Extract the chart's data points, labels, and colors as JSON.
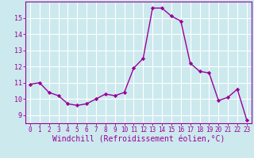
{
  "x": [
    0,
    1,
    2,
    3,
    4,
    5,
    6,
    7,
    8,
    9,
    10,
    11,
    12,
    13,
    14,
    15,
    16,
    17,
    18,
    19,
    20,
    21,
    22,
    23
  ],
  "y": [
    10.9,
    11.0,
    10.4,
    10.2,
    9.7,
    9.6,
    9.7,
    10.0,
    10.3,
    10.2,
    10.4,
    11.9,
    12.5,
    15.6,
    15.6,
    15.1,
    14.8,
    12.2,
    11.7,
    11.6,
    9.9,
    10.1,
    10.6,
    8.7
  ],
  "line_color": "#990099",
  "marker": "D",
  "markersize": 2.2,
  "linewidth": 1.0,
  "bg_color": "#cce9ee",
  "grid_color": "#ffffff",
  "xlabel": "Windchill (Refroidissement éolien,°C)",
  "xlabel_fontsize": 7,
  "xtick_labels": [
    "0",
    "1",
    "2",
    "3",
    "4",
    "5",
    "6",
    "7",
    "8",
    "9",
    "10",
    "11",
    "12",
    "13",
    "14",
    "15",
    "16",
    "17",
    "18",
    "19",
    "20",
    "21",
    "22",
    "23"
  ],
  "ytick_labels": [
    "9",
    "10",
    "11",
    "12",
    "13",
    "14",
    "15"
  ],
  "ylim": [
    8.5,
    16.0
  ],
  "xlim": [
    -0.5,
    23.5
  ],
  "yticks": [
    9,
    10,
    11,
    12,
    13,
    14,
    15
  ],
  "tick_color": "#990099",
  "label_color": "#990099",
  "axis_color": "#990099",
  "xtick_fontsize": 5.5,
  "ytick_fontsize": 6.0
}
